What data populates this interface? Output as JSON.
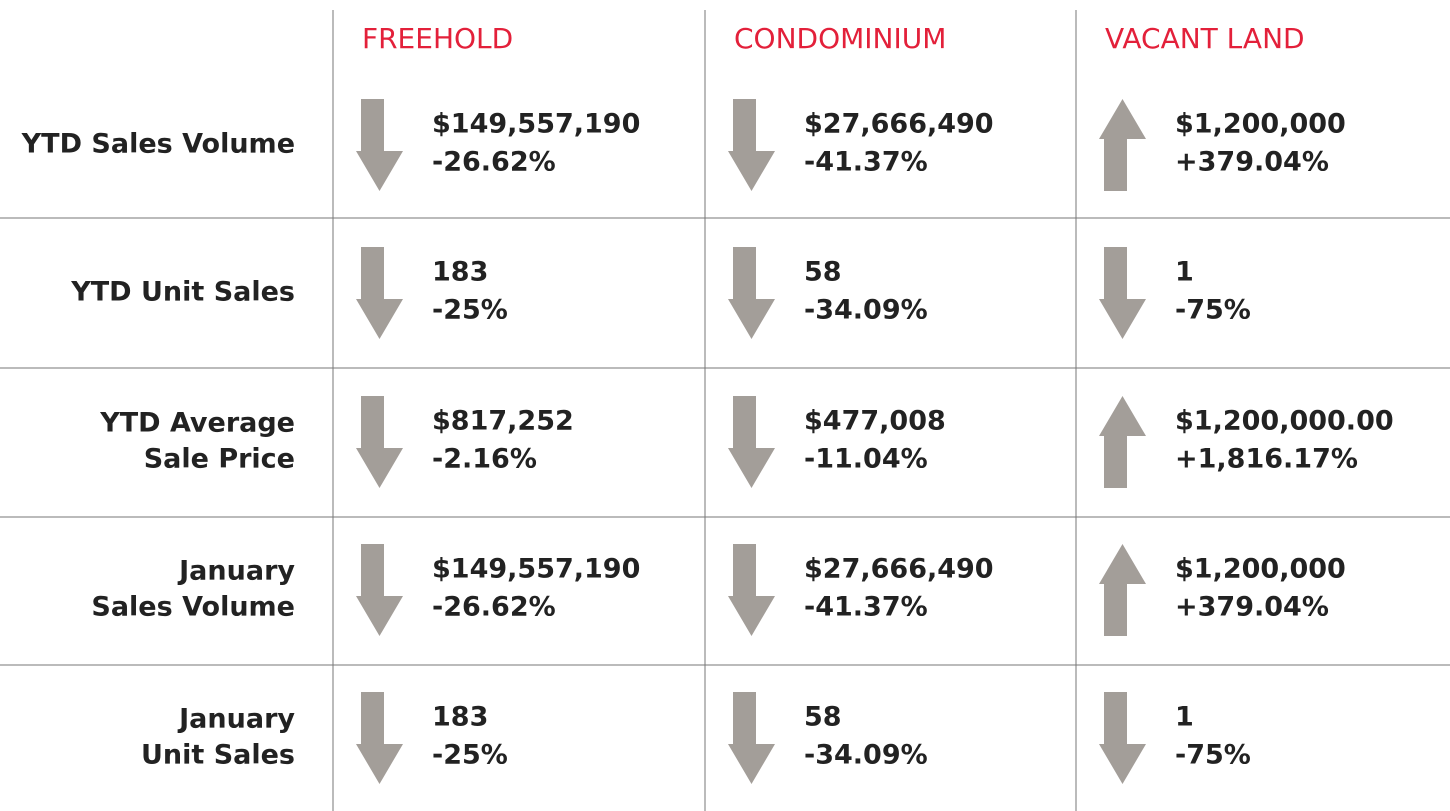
{
  "columns": [
    "FREEHOLD",
    "CONDOMINIUM",
    "VACANT LAND"
  ],
  "rows": [
    {
      "label": [
        "YTD Sales Volume"
      ],
      "cells": [
        {
          "value": "$149,557,190",
          "change": "-26.62%"
        },
        {
          "value": "$27,666,490",
          "change": "-41.37%"
        },
        {
          "value": "$1,200,000",
          "change": "+379.04%"
        }
      ]
    },
    {
      "label": [
        "YTD Unit Sales"
      ],
      "cells": [
        {
          "value": "183",
          "change": "-25%"
        },
        {
          "value": "58",
          "change": "-34.09%"
        },
        {
          "value": "1",
          "change": "-75%"
        }
      ]
    },
    {
      "label": [
        "YTD Average",
        "Sale Price"
      ],
      "cells": [
        {
          "value": "$817,252",
          "change": "-2.16%"
        },
        {
          "value": "$477,008",
          "change": "-11.04%"
        },
        {
          "value": "$1,200,000.00",
          "change": "+1,816.17%"
        }
      ]
    },
    {
      "label": [
        "January",
        "Sales Volume"
      ],
      "cells": [
        {
          "value": "$149,557,190",
          "change": "-26.62%"
        },
        {
          "value": "$27,666,490",
          "change": "-41.37%"
        },
        {
          "value": "$1,200,000",
          "change": "+379.04%"
        }
      ]
    },
    {
      "label": [
        "January",
        "Unit Sales"
      ],
      "cells": [
        {
          "value": "183",
          "change": "-25%"
        },
        {
          "value": "58",
          "change": "-34.09%"
        },
        {
          "value": "1",
          "change": "-75%"
        }
      ]
    }
  ]
}
